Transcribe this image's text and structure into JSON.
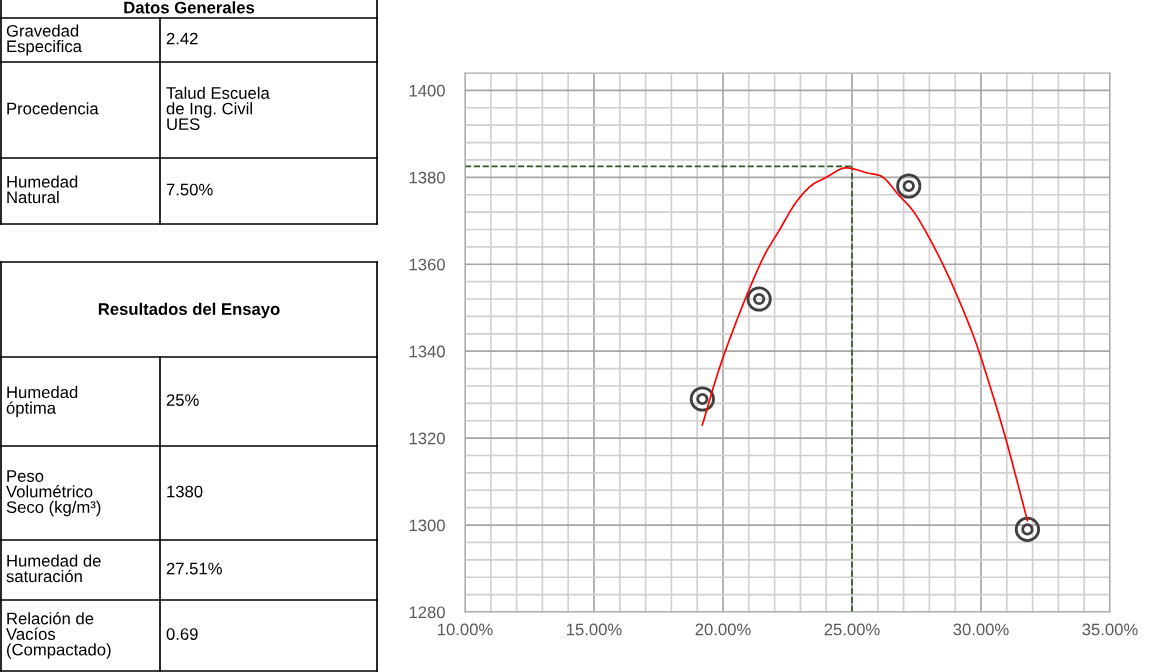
{
  "chart_data": [
    {
      "type": "other",
      "title": "Datos Generales",
      "annotations": [
        "Gravedad\nEspecifica",
        "2.42",
        "Procedencia",
        "Talud Escuela\nde Ing. Civil\nUES",
        "Humedad\nNatural",
        "7.50%"
      ]
    },
    {
      "type": "other",
      "title": "Resultados del Ensayo",
      "annotations": [
        "Humedad\nóptima",
        "25%",
        "Peso\nVolumétrico\nSeco (kg/m³)",
        "1380",
        "Humedad de\nsaturación",
        "27.51%",
        "Relación de\nVacíos\n(Compactado)",
        "0.69"
      ]
    },
    {
      "type": "scatter",
      "xlim": [
        0.1,
        0.35
      ],
      "ylim": [
        1280,
        1404
      ],
      "xticks": [
        {
          "value": 0.1,
          "label": "10.00%"
        },
        {
          "value": 0.15,
          "label": "15.00%"
        },
        {
          "value": 0.2,
          "label": "20.00%"
        },
        {
          "value": 0.25,
          "label": "25.00%"
        },
        {
          "value": 0.3,
          "label": "30.00%"
        },
        {
          "value": 0.35,
          "label": "35.00%"
        }
      ],
      "yticks": [
        1280,
        1300,
        1320,
        1340,
        1360,
        1380,
        1400
      ],
      "grid": true,
      "marker": "circle",
      "ref_lines": [
        {
          "axis": "x",
          "value": 0.25,
          "color": "#375623",
          "line_style": "dashed"
        },
        {
          "axis": "y",
          "value": 1382.5,
          "color": "#375623",
          "line_style": "dashed"
        }
      ],
      "series": [
        {
          "type": "line",
          "color": "#ff0000",
          "marker": "none",
          "x": [
            0.192,
            0.198,
            0.204,
            0.21,
            0.216,
            0.222,
            0.228,
            0.234,
            0.24,
            0.246,
            0.25,
            0.256,
            0.262,
            0.268,
            0.274,
            0.28,
            0.286,
            0.292,
            0.298,
            0.304,
            0.31,
            0.318
          ],
          "values": [
            1323,
            1335,
            1345,
            1354,
            1362,
            1368,
            1374,
            1378,
            1380,
            1382,
            1382,
            1381,
            1380,
            1376,
            1372,
            1366,
            1359,
            1351,
            1342,
            1331,
            1319,
            1301
          ]
        },
        {
          "type": "scatter",
          "color": "#404040",
          "x": [
            0.192,
            0.214,
            0.272,
            0.318
          ],
          "values": [
            1329,
            1352,
            1378,
            1299
          ]
        }
      ]
    }
  ]
}
